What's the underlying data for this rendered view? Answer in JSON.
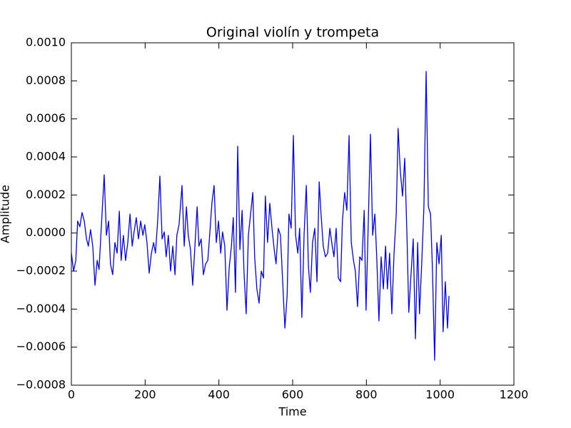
{
  "chart_data": {
    "type": "line",
    "title": "Original violín y trompeta",
    "xlabel": "Time",
    "ylabel": "Amplitude",
    "color": "#0000ff",
    "xlim": [
      0,
      1200
    ],
    "xticks": [
      0,
      200,
      400,
      600,
      800,
      1000,
      1200
    ],
    "ylim": [
      -0.0008,
      0.001
    ],
    "yticks": [
      {
        "value": -0.0008,
        "label": "−0.0008"
      },
      {
        "value": -0.0006,
        "label": "−0.0006"
      },
      {
        "value": -0.0004,
        "label": "−0.0004"
      },
      {
        "value": -0.0002,
        "label": "−0.0002"
      },
      {
        "value": 0,
        "label": "0.0000"
      },
      {
        "value": 0.0002,
        "label": "0.0002"
      },
      {
        "value": 0.0004,
        "label": "0.0004"
      },
      {
        "value": 0.0006,
        "label": "0.0006"
      },
      {
        "value": 0.0008,
        "label": "0.0008"
      },
      {
        "value": 0.001,
        "label": "0.0010"
      }
    ],
    "grid": false,
    "x": [
      0,
      6,
      12,
      17,
      23,
      29,
      35,
      41,
      46,
      52,
      58,
      64,
      70,
      75,
      81,
      89,
      95,
      101,
      106,
      112,
      118,
      124,
      130,
      135,
      141,
      147,
      153,
      159,
      165,
      170,
      176,
      182,
      188,
      194,
      199,
      205,
      211,
      217,
      223,
      228,
      234,
      240,
      246,
      252,
      257,
      263,
      269,
      275,
      281,
      286,
      292,
      300,
      306,
      312,
      317,
      323,
      329,
      335,
      341,
      346,
      352,
      358,
      364,
      370,
      375,
      381,
      387,
      393,
      399,
      405,
      410,
      416,
      422,
      428,
      434,
      439,
      445,
      451,
      457,
      463,
      468,
      474,
      480,
      486,
      492,
      497,
      503,
      509,
      515,
      521,
      526,
      532,
      538,
      544,
      550,
      555,
      561,
      567,
      573,
      579,
      585,
      590,
      596,
      602,
      608,
      614,
      619,
      625,
      631,
      637,
      643,
      648,
      654,
      660,
      666,
      672,
      677,
      683,
      689,
      695,
      701,
      706,
      712,
      718,
      724,
      730,
      735,
      741,
      747,
      753,
      759,
      765,
      770,
      776,
      782,
      788,
      794,
      799,
      805,
      811,
      817,
      823,
      828,
      834,
      840,
      846,
      852,
      857,
      863,
      869,
      875,
      881,
      886,
      892,
      898,
      904,
      910,
      915,
      921,
      927,
      933,
      939,
      944,
      950,
      956,
      962,
      968,
      974,
      979,
      985,
      991,
      997,
      1003,
      1008,
      1014,
      1020,
      1024
    ],
    "values": [
      -0.000106,
      -0.0002,
      -0.000144,
      6.3e-05,
      3.3e-05,
      0.000108,
      6.3e-05,
      -3.1e-05,
      -6.9e-05,
      1.8e-05,
      -6.9e-05,
      -0.000275,
      -0.000144,
      -0.000192,
      2.5e-05,
      0.000306,
      -1.2e-05,
      6.3e-05,
      -0.000162,
      -0.000219,
      -5e-05,
      -0.000106,
      0.000115,
      -0.000144,
      -1.2e-05,
      -0.000144,
      -5e-05,
      0.0001,
      -6.9e-05,
      6e-06,
      8.1e-05,
      -3.1e-05,
      6.3e-05,
      -1.2e-05,
      4.4e-05,
      -5e-05,
      -0.000211,
      -0.000106,
      -5e-05,
      -0.000106,
      6.3e-05,
      0.000299,
      -3.1e-05,
      6e-06,
      -0.000125,
      -1.2e-05,
      -0.0002,
      -6.9e-05,
      -0.000219,
      -1.2e-05,
      4.4e-05,
      0.00025,
      -6.9e-05,
      0.000138,
      -1.2e-05,
      -8.7e-05,
      -0.000275,
      -6.9e-05,
      0.000138,
      -6.9e-05,
      -3.1e-05,
      -0.000219,
      -0.000162,
      -0.000144,
      -1.2e-05,
      0.000156,
      0.00025,
      -5e-05,
      6.3e-05,
      -0.000106,
      6e-06,
      -6.9e-05,
      -0.000406,
      -0.000181,
      -6.9e-05,
      8.1e-05,
      -0.000312,
      0.000456,
      -8.7e-05,
      0.000119,
      -0.0002,
      -0.000425,
      -1.2e-05,
      0.0001,
      0.000213,
      -0.000125,
      -0.000294,
      -0.000369,
      -0.0002,
      -0.000237,
      0.000194,
      -5e-05,
      0.000156,
      2.5e-05,
      -8.7e-05,
      -0.000162,
      2.5e-05,
      -1.2e-05,
      -0.000256,
      -0.0005,
      -0.000331,
      0.0001,
      2.5e-05,
      0.000513,
      -1.2e-05,
      -0.000106,
      2.5e-05,
      -0.000444,
      -1.2e-05,
      0.00025,
      -0.000181,
      -0.000312,
      -5e-05,
      2.5e-05,
      -0.000256,
      0.000269,
      0.0001,
      -6.9e-05,
      -0.000125,
      -0.000106,
      2.5e-05,
      -5e-05,
      -0.000125,
      2.5e-05,
      -0.000237,
      -0.000256,
      6.3e-05,
      0.000213,
      0.000119,
      0.000513,
      -5e-05,
      -0.000144,
      -0.0002,
      -0.000387,
      -0.000125,
      -0.000144,
      0.000119,
      -0.000406,
      4.4e-05,
      0.00052,
      -1.2e-05,
      0.0001,
      -0.000125,
      -0.000462,
      -0.000125,
      -0.000294,
      -6.9e-05,
      -0.000294,
      -0.000106,
      -0.000425,
      -0.000106,
      0.0001,
      0.00055,
      0.000325,
      0.000194,
      0.000393,
      -1.2e-05,
      -0.000417,
      -0.000219,
      -3.1e-05,
      -0.000556,
      -5e-05,
      -0.000425,
      -0.000162,
      0.000138,
      0.00085,
      0.000138,
      0.0001,
      -0.000181,
      -0.000669,
      -5e-05,
      -0.000162,
      -1.2e-05,
      -0.000519,
      -0.000256,
      -0.0005,
      -0.000331
    ]
  }
}
